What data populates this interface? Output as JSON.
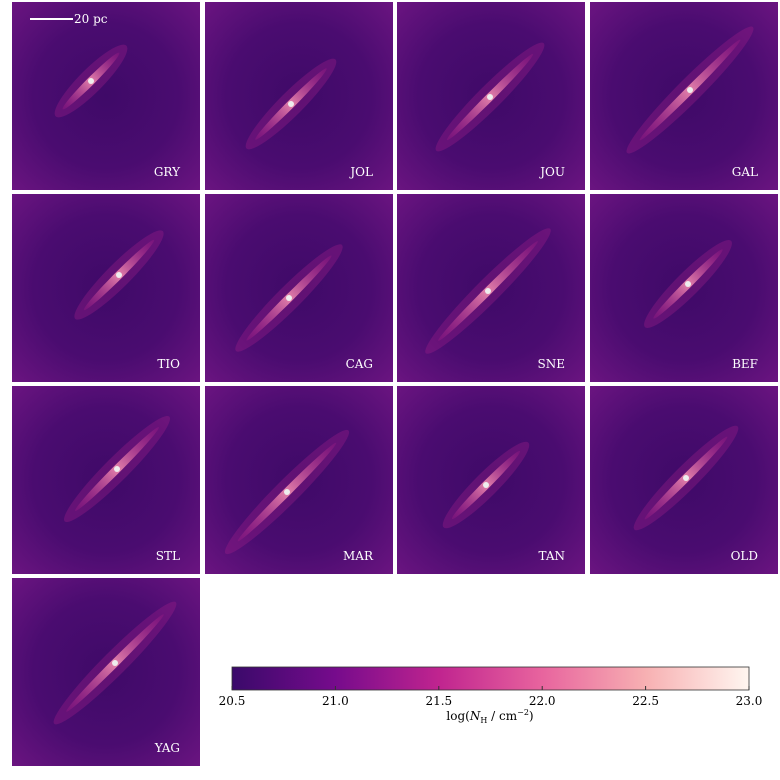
{
  "scale_bar": {
    "label": "20 pc"
  },
  "panels": [
    "GRY",
    "JOL",
    "JOU",
    "GAL",
    "TIO",
    "CAG",
    "SNE",
    "BEF",
    "STL",
    "MAR",
    "TAN",
    "OLD",
    "YAG"
  ],
  "colorbar": {
    "lim": [
      20.5,
      23.0
    ],
    "ticks": [
      20.5,
      {
        "value": 21,
        "label": "21.0"
      },
      21.5,
      {
        "value": 22,
        "label": "22.0"
      },
      22.5,
      {
        "value": 23,
        "label": "23.0"
      }
    ],
    "label": {
      "prefix": "log(",
      "var": "N",
      "sub": "H",
      "mid": " / cm",
      "sup": "−2",
      "suffix": ")"
    }
  }
}
